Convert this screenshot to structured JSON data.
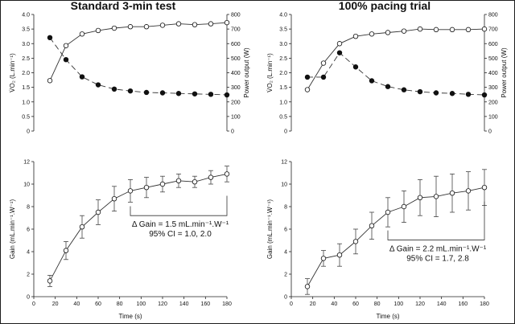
{
  "chart_data": [
    {
      "panel": "left-top",
      "type": "line",
      "title": "Standard 3-min test",
      "xlabel": "",
      "ylabel": "V̇O₂ (L.min⁻¹)",
      "ylabel_right": "Power output (W)",
      "xlim": [
        0,
        180
      ],
      "ylim": [
        0,
        4.0
      ],
      "ylim_right": [
        0,
        800
      ],
      "yticks": [
        "0",
        "0.5",
        "1.0",
        "1.5",
        "2.0",
        "2.5",
        "3.0",
        "3.5",
        "4.0"
      ],
      "yticks_right": [
        "0",
        "100",
        "200",
        "300",
        "400",
        "500",
        "600",
        "700",
        "800"
      ],
      "series": [
        {
          "name": "VO2",
          "marker": "open-circle",
          "line": "solid",
          "axis": "left",
          "x": [
            15,
            30,
            45,
            60,
            75,
            90,
            105,
            120,
            135,
            150,
            165,
            180
          ],
          "values": [
            1.73,
            2.93,
            3.33,
            3.45,
            3.53,
            3.58,
            3.58,
            3.63,
            3.68,
            3.65,
            3.68,
            3.72
          ]
        },
        {
          "name": "Power output",
          "marker": "filled-circle",
          "line": "dashed",
          "axis": "right",
          "x": [
            15,
            30,
            45,
            60,
            75,
            90,
            105,
            120,
            135,
            150,
            165,
            180
          ],
          "values": [
            641,
            490,
            372,
            317,
            288,
            275,
            265,
            262,
            258,
            255,
            252,
            248
          ]
        }
      ]
    },
    {
      "panel": "right-top",
      "type": "line",
      "title": "100% pacing trial",
      "xlabel": "",
      "ylabel": "V̇O₂ (L.min⁻¹)",
      "ylabel_right": "Power output (W)",
      "xlim": [
        0,
        180
      ],
      "ylim": [
        0,
        4.0
      ],
      "ylim_right": [
        0,
        800
      ],
      "yticks": [
        "0",
        "0.5",
        "1.0",
        "1.5",
        "2.0",
        "2.5",
        "3.0",
        "3.5",
        "4.0"
      ],
      "yticks_right": [
        "0",
        "100",
        "200",
        "300",
        "400",
        "500",
        "600",
        "700",
        "800"
      ],
      "series": [
        {
          "name": "VO2",
          "marker": "open-circle",
          "line": "solid",
          "axis": "left",
          "x": [
            15,
            30,
            45,
            60,
            75,
            90,
            105,
            120,
            135,
            150,
            165,
            180
          ],
          "values": [
            1.42,
            2.33,
            3.0,
            3.25,
            3.33,
            3.38,
            3.43,
            3.5,
            3.48,
            3.48,
            3.48,
            3.5
          ]
        },
        {
          "name": "Power output",
          "marker": "filled-circle",
          "line": "dashed",
          "axis": "right",
          "x": [
            15,
            30,
            45,
            60,
            75,
            90,
            105,
            120,
            135,
            150,
            165,
            180
          ],
          "values": [
            370,
            370,
            537,
            440,
            345,
            305,
            283,
            270,
            262,
            258,
            252,
            248
          ]
        }
      ]
    },
    {
      "panel": "left-bottom",
      "type": "line",
      "title": "",
      "xlabel": "Time (s)",
      "ylabel": "Gain (mL.min⁻¹.W⁻¹)",
      "xlim": [
        0,
        180
      ],
      "ylim": [
        0,
        12
      ],
      "xticks": [
        "0",
        "20",
        "40",
        "60",
        "80",
        "100",
        "120",
        "140",
        "160",
        "180"
      ],
      "yticks": [
        "0",
        "2",
        "4",
        "6",
        "8",
        "10",
        "12"
      ],
      "series": [
        {
          "name": "Gain",
          "marker": "open-circle",
          "line": "solid",
          "x": [
            15,
            30,
            45,
            60,
            75,
            90,
            105,
            120,
            135,
            150,
            165,
            180
          ],
          "values": [
            1.4,
            4.1,
            6.2,
            7.5,
            8.7,
            9.4,
            9.7,
            10.0,
            10.3,
            10.2,
            10.6,
            10.9
          ],
          "err": [
            0.5,
            0.8,
            1.0,
            1.1,
            1.1,
            1.0,
            0.9,
            0.7,
            0.6,
            0.5,
            0.6,
            0.7
          ]
        }
      ],
      "bracket_x": [
        90,
        180
      ],
      "annotation": {
        "line1": "Δ Gain = 1.5 mL.min⁻¹.W⁻¹",
        "line2": "95% CI = 1.0, 2.0"
      }
    },
    {
      "panel": "right-bottom",
      "type": "line",
      "title": "",
      "xlabel": "Time (s)",
      "ylabel": "Gain (mL.min⁻¹.W⁻¹)",
      "xlim": [
        0,
        180
      ],
      "ylim": [
        0,
        12
      ],
      "xticks": [
        "0",
        "20",
        "40",
        "60",
        "80",
        "100",
        "120",
        "140",
        "160",
        "180"
      ],
      "yticks": [
        "0",
        "2",
        "4",
        "6",
        "8",
        "10",
        "12"
      ],
      "series": [
        {
          "name": "Gain",
          "marker": "open-circle",
          "line": "solid",
          "x": [
            15,
            30,
            45,
            60,
            75,
            90,
            105,
            120,
            135,
            150,
            165,
            180
          ],
          "values": [
            0.9,
            3.4,
            3.7,
            4.9,
            6.3,
            7.5,
            8.0,
            8.8,
            8.9,
            9.2,
            9.4,
            9.7
          ],
          "err": [
            0.7,
            0.7,
            1.0,
            1.1,
            1.2,
            1.3,
            1.4,
            1.6,
            1.8,
            1.7,
            1.7,
            1.6
          ]
        }
      ],
      "bracket_x": [
        90,
        180
      ],
      "annotation": {
        "line1": "Δ Gain = 2.2 mL.min⁻¹.W⁻¹",
        "line2": "95% CI = 1.7, 2.8"
      }
    }
  ]
}
